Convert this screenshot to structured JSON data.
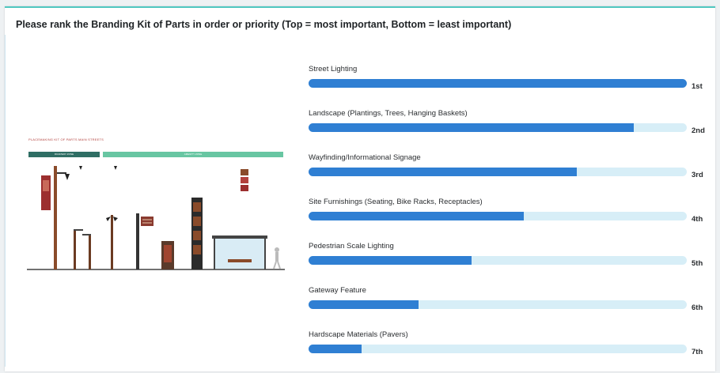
{
  "question": "Please rank the Branding Kit of Parts in order or priority (Top = most important, Bottom = least important)",
  "illustration": {
    "title": "PLACEMAKING KIT OF PARTS MAIN STREETS",
    "subtitle": "",
    "left_band": "ROADWAY ZONE",
    "right_band": "AMENITY ZONE"
  },
  "rank_items": [
    {
      "label": "Street Lighting",
      "position": "1st",
      "fill_fraction": 1.0
    },
    {
      "label": "Landscape (Plantings, Trees, Hanging Baskets)",
      "position": "2nd",
      "fill_fraction": 0.86
    },
    {
      "label": "Wayfinding/Informational Signage",
      "position": "3rd",
      "fill_fraction": 0.71
    },
    {
      "label": "Site Furnishings (Seating, Bike Racks, Receptacles)",
      "position": "4th",
      "fill_fraction": 0.57
    },
    {
      "label": "Pedestrian Scale Lighting",
      "position": "5th",
      "fill_fraction": 0.43
    },
    {
      "label": "Gateway Feature",
      "position": "6th",
      "fill_fraction": 0.29
    },
    {
      "label": "Hardscape Materials (Pavers)",
      "position": "7th",
      "fill_fraction": 0.14
    }
  ],
  "colors": {
    "bar_fill": "#2f7fd3",
    "bar_track": "#d7eef7",
    "accent": "#4fc7c0"
  }
}
